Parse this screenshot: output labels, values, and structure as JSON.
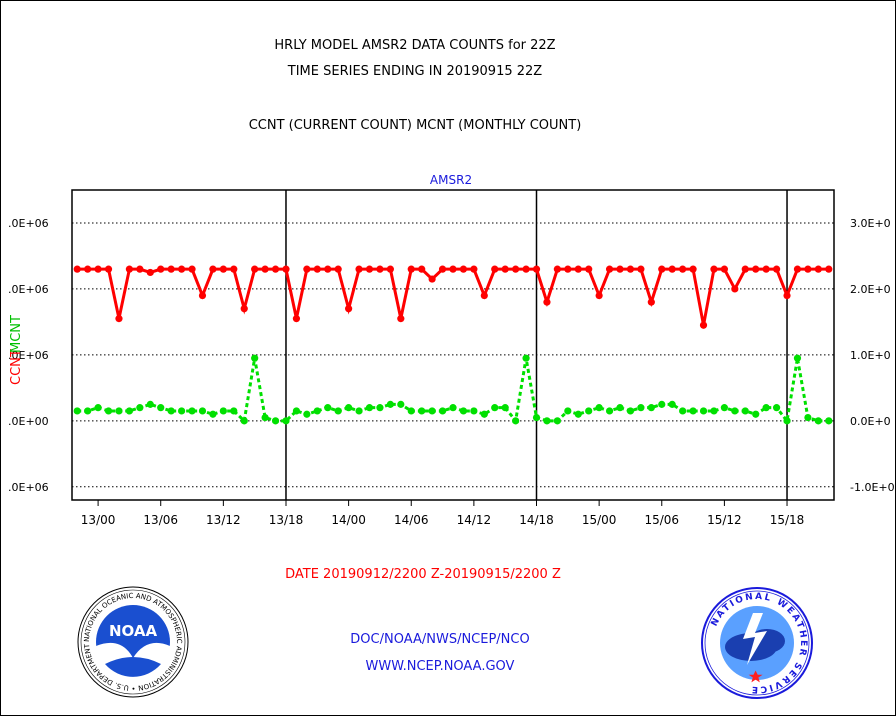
{
  "header": {
    "title_line1": "HRLY MODEL AMSR2 DATA COUNTS for 22Z",
    "title_line2": "TIME SERIES ENDING IN 20190915 22Z",
    "subtitle": "CCNT (CURRENT COUNT) MCNT (MONTHLY COUNT)"
  },
  "colors": {
    "ccnt": "#ff0000",
    "mcnt": "#00e000",
    "panel_title": "#1a1adc",
    "footer_link": "#1a1adc",
    "date_range": "#ff0000"
  },
  "chart_data": {
    "type": "line",
    "title": "AMSR2",
    "xlabel": "DATE 20190912/2200 Z-20190915/2200 Z",
    "ylabel_left": "CCNT",
    "ylabel_right": "MCNT",
    "x_tick_labels": [
      "13/00",
      "13/06",
      "13/12",
      "13/18",
      "14/00",
      "14/06",
      "14/12",
      "14/18",
      "15/00",
      "15/06",
      "15/12",
      "15/18"
    ],
    "x_tick_hours": [
      2,
      8,
      14,
      20,
      26,
      32,
      38,
      44,
      50,
      56,
      62,
      68
    ],
    "day_boundary_hours": [
      20,
      44,
      68
    ],
    "x_range_hours": [
      -0.5,
      72.5
    ],
    "y_left_tick_labels": [
      ".0E+06",
      ".0E+06",
      ".0E+06",
      ".0E+00",
      ".0E+06"
    ],
    "y_right_tick_labels": [
      "3.0E+0",
      "2.0E+0",
      "1.0E+0",
      "0.0E+0",
      "-1.0E+0"
    ],
    "y_ticks": [
      3000000,
      2000000,
      1000000,
      0,
      -1000000
    ],
    "ylim": [
      -1200000,
      3500000
    ],
    "grid": "horizontal-dotted",
    "series": [
      {
        "name": "CCNT",
        "values": [
          2300000,
          2300000,
          2300000,
          2300000,
          1550000,
          2300000,
          2300000,
          2250000,
          2300000,
          2300000,
          2300000,
          2300000,
          1900000,
          2300000,
          2300000,
          2300000,
          1700000,
          2300000,
          2300000,
          2300000,
          2300000,
          1550000,
          2300000,
          2300000,
          2300000,
          2300000,
          1700000,
          2300000,
          2300000,
          2300000,
          2300000,
          1550000,
          2300000,
          2300000,
          2150000,
          2300000,
          2300000,
          2300000,
          2300000,
          1900000,
          2300000,
          2300000,
          2300000,
          2300000,
          2300000,
          1800000,
          2300000,
          2300000,
          2300000,
          2300000,
          1900000,
          2300000,
          2300000,
          2300000,
          2300000,
          1800000,
          2300000,
          2300000,
          2300000,
          2300000,
          1450000,
          2300000,
          2300000,
          2000000,
          2300000,
          2300000,
          2300000,
          2300000,
          1900000,
          2300000,
          2300000,
          2300000,
          2300000
        ]
      },
      {
        "name": "MCNT",
        "values": [
          150000,
          150000,
          200000,
          150000,
          150000,
          150000,
          200000,
          250000,
          200000,
          150000,
          150000,
          150000,
          150000,
          100000,
          150000,
          150000,
          0,
          950000,
          50000,
          0,
          0,
          150000,
          100000,
          150000,
          200000,
          150000,
          200000,
          150000,
          200000,
          200000,
          250000,
          250000,
          150000,
          150000,
          150000,
          150000,
          200000,
          150000,
          150000,
          100000,
          200000,
          200000,
          0,
          950000,
          50000,
          0,
          0,
          150000,
          100000,
          150000,
          200000,
          150000,
          200000,
          150000,
          200000,
          200000,
          250000,
          250000,
          150000,
          150000,
          150000,
          150000,
          200000,
          150000,
          150000,
          100000,
          200000,
          200000,
          0,
          950000,
          50000,
          0,
          0
        ]
      }
    ]
  },
  "footer": {
    "link1": "DOC/NOAA/NWS/NCEP/NCO",
    "link2": "WWW.NCEP.NOAA.GOV"
  },
  "logos": {
    "noaa_text": "NOAA",
    "noaa_ring": "NATIONAL OCEANIC AND ATMOSPHERIC ADMINISTRATION • U.S. DEPARTMENT OF COMMERCE •",
    "nws_ring": "NATIONAL WEATHER SERVICE"
  }
}
